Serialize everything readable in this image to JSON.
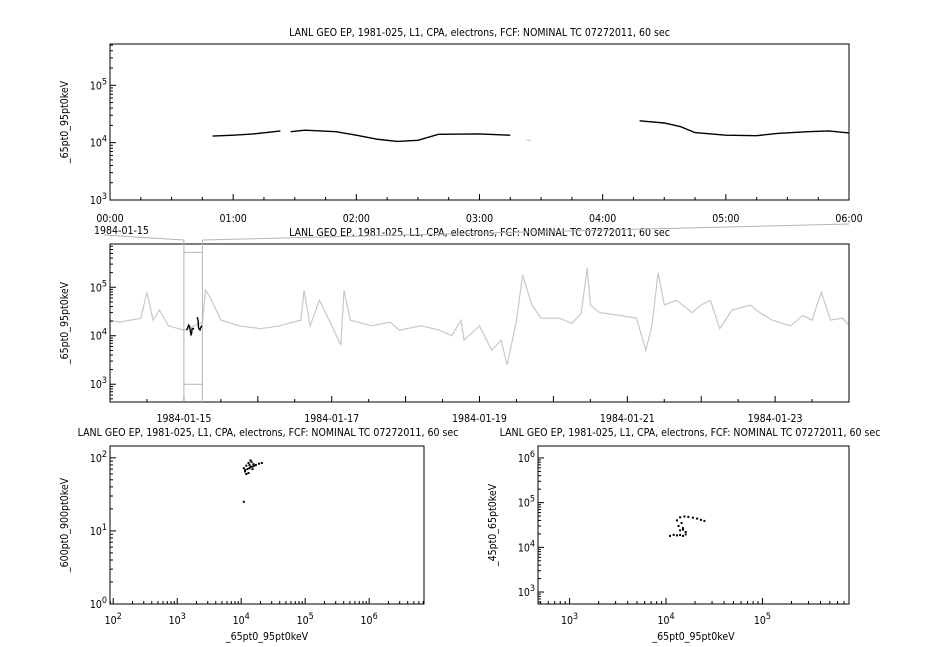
{
  "colors": {
    "primary": "#000000",
    "context": "#c8c8c8",
    "background": "#ffffff"
  },
  "chart_data": [
    {
      "id": "p1",
      "type": "line",
      "title": "LANL GEO EP, 1981-025, L1, CPA, electrons, FCF: NOMINAL TC 07272011, 60 sec",
      "ylabel": "_65pt0_95pt0keV",
      "xlabel": "",
      "yscale": "log",
      "ylim": [
        1000,
        525000
      ],
      "xlim": [
        "00:00",
        "06:00"
      ],
      "xticks": [
        "00:00",
        "01:00",
        "02:00",
        "03:00",
        "04:00",
        "05:00",
        "06:00"
      ],
      "xtick_note": "1984-01-15",
      "yticks": [
        "10^3",
        "10^4",
        "10^5"
      ],
      "series": [
        {
          "color": "#000000",
          "points": [
            [
              "00:50",
              13000
            ],
            [
              "01:00",
              13500
            ],
            [
              "01:10",
              14200
            ],
            [
              "01:20",
              15500
            ],
            [
              "01:23",
              16000
            ]
          ]
        },
        {
          "color": "#000000",
          "points": [
            [
              "01:28",
              15500
            ],
            [
              "01:35",
              16500
            ],
            [
              "01:50",
              15500
            ],
            [
              "02:00",
              13500
            ],
            [
              "02:10",
              11500
            ],
            [
              "02:20",
              10500
            ],
            [
              "02:30",
              11000
            ],
            [
              "02:40",
              14000
            ],
            [
              "03:00",
              14200
            ],
            [
              "03:15",
              13500
            ]
          ]
        },
        {
          "color": "#c8c8c8",
          "points": [
            [
              "03:23",
              11000
            ],
            [
              "03:25",
              11000
            ]
          ]
        },
        {
          "color": "#000000",
          "points": [
            [
              "04:18",
              24000
            ],
            [
              "04:30",
              22000
            ],
            [
              "04:38",
              19000
            ],
            [
              "04:45",
              15000
            ],
            [
              "05:00",
              13500
            ],
            [
              "05:15",
              13200
            ],
            [
              "05:25",
              14500
            ],
            [
              "05:40",
              15500
            ],
            [
              "05:50",
              16000
            ],
            [
              "06:00",
              14800
            ]
          ]
        }
      ]
    },
    {
      "id": "p2",
      "type": "line",
      "title": "LANL GEO EP, 1981-025, L1, CPA, electrons, FCF: NOMINAL TC 07272011, 60 sec",
      "ylabel": "_65pt0_95pt0keV",
      "xlabel": "",
      "yscale": "log",
      "ylim": [
        430,
        780000
      ],
      "xlim": [
        "1984-01-14T00:00",
        "1984-01-24T00:00"
      ],
      "xticks": [
        "1984-01-15",
        "1984-01-17",
        "1984-01-19",
        "1984-01-21",
        "1984-01-23"
      ],
      "yticks": [
        "10^3",
        "10^4",
        "10^5"
      ],
      "highlight": [
        "1984-01-15T00:00",
        "1984-01-15T06:00"
      ],
      "series": [
        {
          "color": "#c8c8c8",
          "points": [
            [
              "1984-01-14T00:00",
              21000
            ],
            [
              "1984-01-14T03:00",
              19000
            ],
            [
              "1984-01-14T10:00",
              23000
            ],
            [
              "1984-01-14T12:00",
              79000
            ],
            [
              "1984-01-14T14:00",
              21000
            ],
            [
              "1984-01-14T16:00",
              34000
            ],
            [
              "1984-01-14T19:00",
              16000
            ],
            [
              "1984-01-15T00:00",
              13000
            ],
            [
              "1984-01-15T06:00",
              19000
            ],
            [
              "1984-01-15T07:00",
              87000
            ],
            [
              "1984-01-15T09:00",
              54000
            ],
            [
              "1984-01-15T12:00",
              21000
            ],
            [
              "1984-01-15T18:00",
              16000
            ],
            [
              "1984-01-16T01:00",
              14000
            ],
            [
              "1984-01-16T07:00",
              16000
            ],
            [
              "1984-01-16T14:00",
              21000
            ],
            [
              "1984-01-16T15:00",
              87000
            ],
            [
              "1984-01-16T17:00",
              16000
            ],
            [
              "1984-01-16T20:00",
              54000
            ],
            [
              "1984-01-17T00:00",
              16000
            ],
            [
              "1984-01-17T03:00",
              6400
            ],
            [
              "1984-01-17T04:00",
              87000
            ],
            [
              "1984-01-17T06:00",
              21000
            ],
            [
              "1984-01-17T13:00",
              16000
            ],
            [
              "1984-01-17T19:00",
              19000
            ],
            [
              "1984-01-17T22:00",
              13000
            ],
            [
              "1984-01-18T05:00",
              16000
            ],
            [
              "1984-01-18T11:00",
              13000
            ],
            [
              "1984-01-18T15:00",
              10000
            ],
            [
              "1984-01-18T18:00",
              21000
            ],
            [
              "1984-01-18T19:00",
              8100
            ],
            [
              "1984-01-19T00:00",
              16000
            ],
            [
              "1984-01-19T04:00",
              5000
            ],
            [
              "1984-01-19T07:00",
              8100
            ],
            [
              "1984-01-19T09:00",
              2500
            ],
            [
              "1984-01-19T12:00",
              21000
            ],
            [
              "1984-01-19T14:00",
              180000
            ],
            [
              "1984-01-19T17:00",
              43000
            ],
            [
              "1984-01-19T20:00",
              23000
            ],
            [
              "1984-01-20T02:00",
              23000
            ],
            [
              "1984-01-20T06:00",
              18000
            ],
            [
              "1984-01-20T09:00",
              29000
            ],
            [
              "1984-01-20T11:00",
              250000
            ],
            [
              "1984-01-20T12:00",
              43000
            ],
            [
              "1984-01-20T15:00",
              30000
            ],
            [
              "1984-01-20T22:00",
              26000
            ],
            [
              "1984-01-21T03:00",
              23000
            ],
            [
              "1984-01-21T06:00",
              5000
            ],
            [
              "1984-01-21T08:00",
              16000
            ],
            [
              "1984-01-21T10:00",
              200000
            ],
            [
              "1984-01-21T12:00",
              43000
            ],
            [
              "1984-01-21T16:00",
              54000
            ],
            [
              "1984-01-21T21:00",
              30000
            ],
            [
              "1984-01-22T00:00",
              43000
            ],
            [
              "1984-01-22T03:00",
              54000
            ],
            [
              "1984-01-22T06:00",
              14000
            ],
            [
              "1984-01-22T10:00",
              34000
            ],
            [
              "1984-01-22T16:00",
              43000
            ],
            [
              "1984-01-22T19:00",
              30000
            ],
            [
              "1984-01-22T23:00",
              21000
            ],
            [
              "1984-01-23T05:00",
              16000
            ],
            [
              "1984-01-23T09:00",
              26000
            ],
            [
              "1984-01-23T12:00",
              21000
            ],
            [
              "1984-01-23T15:00",
              79000
            ],
            [
              "1984-01-23T18:00",
              21000
            ],
            [
              "1984-01-23T22:00",
              23000
            ],
            [
              "1984-01-24T00:00",
              16000
            ]
          ]
        }
      ]
    },
    {
      "id": "p3",
      "type": "scatter",
      "title": "LANL GEO EP, 1981-025, L1, CPA, electrons, FCF: NOMINAL TC 07272011, 60 sec",
      "xlabel": "_65pt0_95pt0keV",
      "ylabel": "_600pt0_900pt0keV",
      "xscale": "log",
      "yscale": "log",
      "xlim": [
        89,
        7200000
      ],
      "ylim": [
        1,
        145
      ],
      "xticks": [
        "10^2",
        "10^3",
        "10^4",
        "10^5",
        "10^6"
      ],
      "yticks": [
        "10^0",
        "10^1",
        "10^2"
      ],
      "points": [
        [
          11000,
          72
        ],
        [
          11500,
          65
        ],
        [
          12000,
          78
        ],
        [
          12500,
          70
        ],
        [
          13000,
          85
        ],
        [
          13500,
          80
        ],
        [
          14000,
          75
        ],
        [
          14500,
          88
        ],
        [
          15000,
          70
        ],
        [
          15500,
          82
        ],
        [
          16000,
          78
        ],
        [
          13000,
          62
        ],
        [
          12000,
          60
        ],
        [
          14000,
          92
        ],
        [
          17000,
          80
        ],
        [
          19000,
          83
        ],
        [
          21000,
          85
        ],
        [
          11500,
          68
        ],
        [
          15000,
          76
        ],
        [
          13500,
          72
        ],
        [
          11000,
          25
        ]
      ]
    },
    {
      "id": "p4",
      "type": "scatter",
      "title": "LANL GEO EP, 1981-025, L1, CPA, electrons, FCF: NOMINAL TC 07272011, 60 sec",
      "xlabel": "_65pt0_95pt0keV",
      "ylabel": "_45pt0_65pt0keV",
      "xscale": "log",
      "yscale": "log",
      "xlim": [
        470,
        790000
      ],
      "ylim": [
        540,
        1850000
      ],
      "xticks": [
        "10^3",
        "10^4",
        "10^5"
      ],
      "yticks": [
        "10^3",
        "10^4",
        "10^5",
        "10^6"
      ],
      "points": [
        [
          11000,
          18000
        ],
        [
          12000,
          19000
        ],
        [
          13000,
          18500
        ],
        [
          14000,
          19000
        ],
        [
          15000,
          18000
        ],
        [
          16000,
          19500
        ],
        [
          14000,
          24000
        ],
        [
          15000,
          27000
        ],
        [
          13500,
          30000
        ],
        [
          14500,
          35000
        ],
        [
          13000,
          40000
        ],
        [
          14000,
          47000
        ],
        [
          15500,
          49000
        ],
        [
          17000,
          48000
        ],
        [
          19000,
          46000
        ],
        [
          21000,
          44000
        ],
        [
          23000,
          41000
        ],
        [
          25000,
          39000
        ],
        [
          15000,
          25000
        ],
        [
          16000,
          22000
        ]
      ]
    }
  ]
}
